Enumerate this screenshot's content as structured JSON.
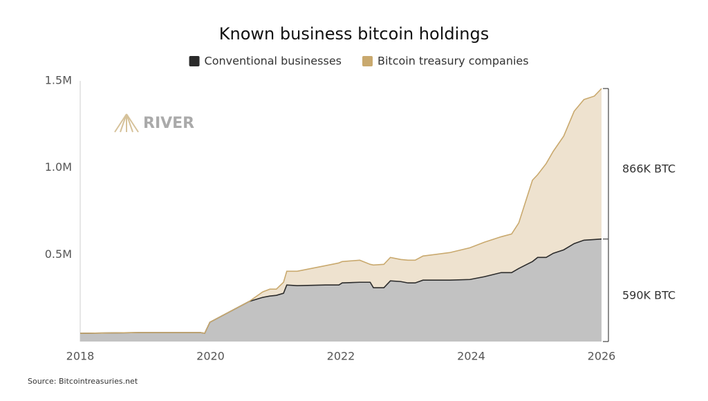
{
  "chart_data": {
    "type": "stacked_area",
    "title": "Known business bitcoin holdings",
    "watermark": "RIVER",
    "source": "Source: Bitcointreasuries.net",
    "x": [
      2018.0,
      2018.89,
      2019.85,
      2019.91,
      2019.99,
      2020.27,
      2020.59,
      2020.8,
      2020.91,
      2021.01,
      2021.12,
      2021.17,
      2021.33,
      2021.76,
      2021.97,
      2022.02,
      2022.29,
      2022.45,
      2022.5,
      2022.66,
      2022.76,
      2022.92,
      2023.03,
      2023.14,
      2023.26,
      2023.67,
      2023.98,
      2024.2,
      2024.46,
      2024.62,
      2024.73,
      2024.94,
      2025.02,
      2025.15,
      2025.26,
      2025.42,
      2025.58,
      2025.73,
      2025.89,
      2026.0
    ],
    "series": [
      {
        "name": "Conventional businesses",
        "color": "#2b2b2b",
        "fill": "#c2c2c2",
        "values": [
          47600,
          51600,
          51600,
          47600,
          111100,
          166700,
          230100,
          254000,
          261900,
          265900,
          277700,
          325400,
          321400,
          325400,
          325400,
          337300,
          341200,
          341200,
          309500,
          309500,
          349200,
          345200,
          337300,
          337300,
          353200,
          353200,
          357100,
          373000,
          396800,
          396800,
          420600,
          460300,
          484100,
          484100,
          507900,
          527700,
          563500,
          583300,
          587300,
          590000
        ]
      },
      {
        "name": "Bitcoin treasury companies",
        "color": "#c9a96e",
        "fill": "#eee2cf",
        "values": [
          0,
          0,
          0,
          0,
          0,
          0,
          0,
          31700,
          39700,
          35700,
          63500,
          79400,
          83300,
          111100,
          127000,
          123000,
          127000,
          103200,
          131000,
          134900,
          134900,
          127000,
          131000,
          131000,
          138900,
          158700,
          182500,
          198400,
          206300,
          222200,
          261900,
          468200,
          476200,
          539600,
          587300,
          654700,
          761900,
          809500,
          825300,
          866000
        ]
      }
    ],
    "annotations": [
      {
        "text": "590K BTC",
        "value": 590000
      },
      {
        "text": "866K BTC",
        "value": 866000
      }
    ],
    "xlim": [
      2018,
      2026
    ],
    "xticks": [
      2018,
      2020,
      2022,
      2024,
      2026
    ],
    "ylim": [
      0,
      1500000
    ],
    "yticks": [
      {
        "value": 500000,
        "label": "0.5M"
      },
      {
        "value": 1000000,
        "label": "1.0M"
      },
      {
        "value": 1500000,
        "label": "1.5M"
      }
    ],
    "legend": "top"
  }
}
